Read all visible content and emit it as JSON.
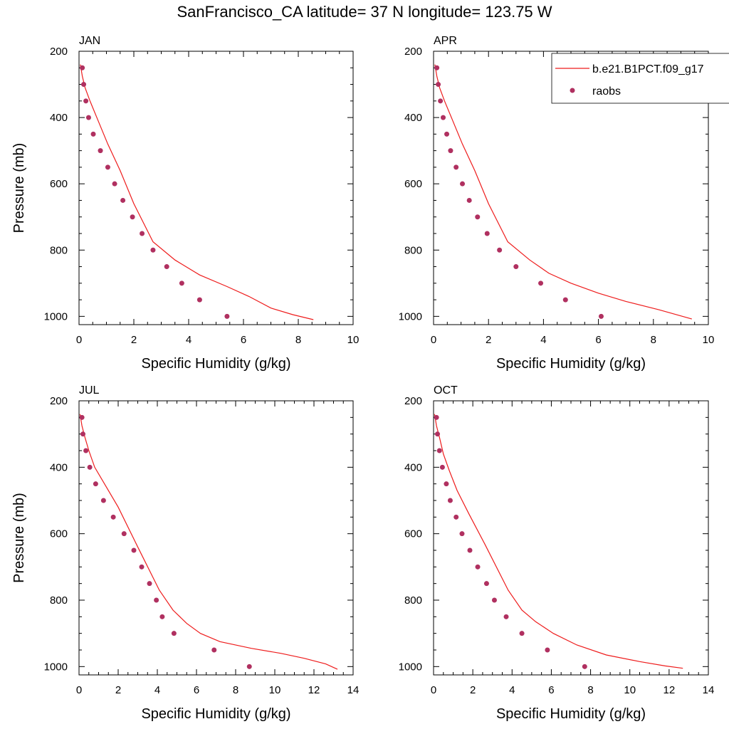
{
  "title": "SanFrancisco_CA  latitude= 37 N longitude= 123.75 W",
  "legend": {
    "model_label": "b.e21.B1PCT.f09_g17",
    "obs_label": "raobs",
    "model_color": "#ee1c1c",
    "obs_color": "#b03060"
  },
  "chart_data": [
    {
      "type": "line",
      "panel_label": "JAN",
      "xlabel": "Specific Humidity (g/kg)",
      "ylabel": "Pressure (mb)",
      "xlim": [
        0,
        10
      ],
      "ylim": [
        200,
        1025
      ],
      "y_reversed": true,
      "xticks": [
        0,
        2,
        4,
        6,
        8,
        10
      ],
      "yticks": [
        200,
        400,
        600,
        800,
        1000
      ],
      "series": [
        {
          "name": "b.e21.B1PCT.f09_g17",
          "style": "line",
          "x": [
            0.05,
            0.12,
            0.22,
            0.4,
            0.7,
            1.05,
            1.5,
            2.0,
            2.7,
            3.5,
            4.4,
            5.4,
            6.2,
            7.0,
            7.8,
            8.55
          ],
          "y": [
            240,
            275,
            310,
            350,
            410,
            480,
            560,
            660,
            775,
            830,
            875,
            910,
            940,
            975,
            995,
            1010
          ]
        },
        {
          "name": "raobs",
          "style": "scatter",
          "x": [
            0.12,
            0.17,
            0.25,
            0.35,
            0.52,
            0.78,
            1.05,
            1.3,
            1.6,
            1.95,
            2.3,
            2.7,
            3.2,
            3.75,
            4.4,
            5.4
          ],
          "y": [
            250,
            300,
            350,
            400,
            450,
            500,
            550,
            600,
            650,
            700,
            750,
            800,
            850,
            900,
            950,
            1000
          ]
        }
      ]
    },
    {
      "type": "line",
      "panel_label": "APR",
      "xlabel": "Specific Humidity (g/kg)",
      "ylabel": "",
      "xlim": [
        0,
        10
      ],
      "ylim": [
        200,
        1025
      ],
      "y_reversed": true,
      "xticks": [
        0,
        2,
        4,
        6,
        8,
        10
      ],
      "yticks": [
        200,
        400,
        600,
        800,
        1000
      ],
      "series": [
        {
          "name": "b.e21.B1PCT.f09_g17",
          "style": "line",
          "x": [
            0.05,
            0.12,
            0.22,
            0.4,
            0.7,
            1.05,
            1.5,
            2.0,
            2.7,
            3.5,
            4.2,
            5.0,
            6.0,
            7.0,
            8.2,
            9.4
          ],
          "y": [
            240,
            275,
            310,
            350,
            410,
            480,
            560,
            660,
            775,
            830,
            870,
            900,
            930,
            955,
            980,
            1008
          ]
        },
        {
          "name": "raobs",
          "style": "scatter",
          "x": [
            0.12,
            0.17,
            0.25,
            0.35,
            0.48,
            0.62,
            0.82,
            1.05,
            1.3,
            1.6,
            1.95,
            2.4,
            3.0,
            3.9,
            4.8,
            6.1
          ],
          "y": [
            250,
            300,
            350,
            400,
            450,
            500,
            550,
            600,
            650,
            700,
            750,
            800,
            850,
            900,
            950,
            1000
          ]
        }
      ]
    },
    {
      "type": "line",
      "panel_label": "JUL",
      "xlabel": "Specific Humidity (g/kg)",
      "ylabel": "Pressure (mb)",
      "xlim": [
        0,
        14
      ],
      "ylim": [
        200,
        1025
      ],
      "y_reversed": true,
      "xticks": [
        0,
        2,
        4,
        6,
        8,
        10,
        12,
        14
      ],
      "yticks": [
        200,
        400,
        600,
        800,
        1000
      ],
      "series": [
        {
          "name": "b.e21.B1PCT.f09_g17",
          "style": "line",
          "x": [
            0.05,
            0.15,
            0.3,
            0.5,
            0.8,
            1.3,
            2.0,
            3.0,
            4.1,
            4.8,
            5.5,
            6.2,
            7.2,
            8.8,
            10.3,
            11.5,
            12.6,
            13.2
          ],
          "y": [
            240,
            275,
            310,
            350,
            400,
            450,
            520,
            640,
            770,
            830,
            870,
            900,
            925,
            945,
            960,
            975,
            992,
            1008
          ]
        },
        {
          "name": "raobs",
          "style": "scatter",
          "x": [
            0.15,
            0.2,
            0.35,
            0.55,
            0.85,
            1.25,
            1.75,
            2.3,
            2.8,
            3.2,
            3.6,
            3.95,
            4.25,
            4.85,
            6.9,
            8.7
          ],
          "y": [
            250,
            300,
            350,
            400,
            450,
            500,
            550,
            600,
            650,
            700,
            750,
            800,
            850,
            900,
            950,
            1000
          ]
        }
      ]
    },
    {
      "type": "line",
      "panel_label": "OCT",
      "xlabel": "Specific Humidity (g/kg)",
      "ylabel": "",
      "xlim": [
        0,
        14
      ],
      "ylim": [
        200,
        1025
      ],
      "y_reversed": true,
      "xticks": [
        0,
        2,
        4,
        6,
        8,
        10,
        12,
        14
      ],
      "yticks": [
        200,
        400,
        600,
        800,
        1000
      ],
      "series": [
        {
          "name": "b.e21.B1PCT.f09_g17",
          "style": "line",
          "x": [
            0.05,
            0.15,
            0.3,
            0.5,
            0.8,
            1.2,
            1.8,
            2.6,
            3.8,
            4.5,
            5.2,
            6.1,
            7.3,
            8.8,
            10.5,
            11.8,
            12.7
          ],
          "y": [
            240,
            275,
            310,
            360,
            410,
            470,
            540,
            630,
            770,
            830,
            865,
            900,
            935,
            965,
            985,
            998,
            1005
          ]
        },
        {
          "name": "raobs",
          "style": "scatter",
          "x": [
            0.15,
            0.2,
            0.3,
            0.45,
            0.65,
            0.85,
            1.15,
            1.45,
            1.85,
            2.25,
            2.7,
            3.1,
            3.7,
            4.5,
            5.8,
            7.7
          ],
          "y": [
            250,
            300,
            350,
            400,
            450,
            500,
            550,
            600,
            650,
            700,
            750,
            800,
            850,
            900,
            950,
            1000
          ]
        }
      ]
    }
  ]
}
